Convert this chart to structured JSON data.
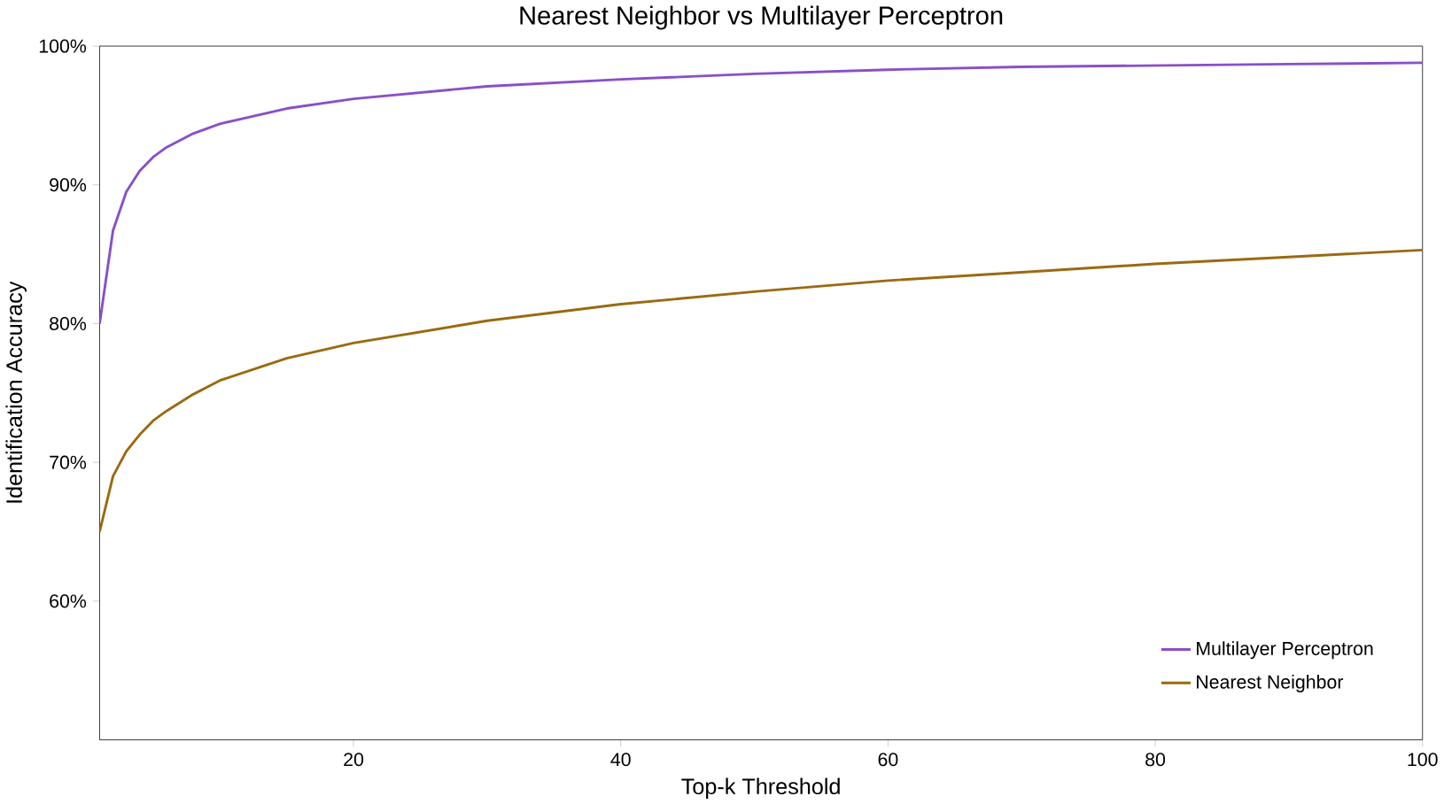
{
  "chart_data": {
    "type": "line",
    "title": "Nearest Neighbor vs Multilayer Perceptron",
    "xlabel": "Top-k Threshold",
    "ylabel": "Identification Accuracy",
    "x": [
      1,
      2,
      3,
      4,
      5,
      6,
      8,
      10,
      15,
      20,
      30,
      40,
      50,
      60,
      70,
      80,
      90,
      100
    ],
    "series": [
      {
        "name": "Multilayer Perceptron",
        "color": "#8a4fc8",
        "values": [
          80,
          86.7,
          89.5,
          91,
          92,
          92.7,
          93.7,
          94.4,
          95.5,
          96.2,
          97.1,
          97.6,
          98.0,
          98.3,
          98.5,
          98.6,
          98.7,
          98.8
        ]
      },
      {
        "name": "Nearest Neighbor",
        "color": "#9a6a10",
        "values": [
          65,
          69,
          70.8,
          72,
          73,
          73.7,
          74.9,
          75.9,
          77.5,
          78.6,
          80.2,
          81.4,
          82.3,
          83.1,
          83.7,
          84.3,
          84.8,
          85.3
        ]
      }
    ],
    "xlim": [
      1,
      100
    ],
    "ylim": [
      50,
      100
    ],
    "xticks": [
      20,
      40,
      60,
      80,
      100
    ],
    "yticks": [
      {
        "value": 60,
        "label": "60%"
      },
      {
        "value": 70,
        "label": "70%"
      },
      {
        "value": 80,
        "label": "80%"
      },
      {
        "value": 90,
        "label": "90%"
      },
      {
        "value": 100,
        "label": "100%"
      }
    ],
    "legend": "bottom right",
    "grid": false,
    "marker": "none",
    "line_style": "solid"
  }
}
